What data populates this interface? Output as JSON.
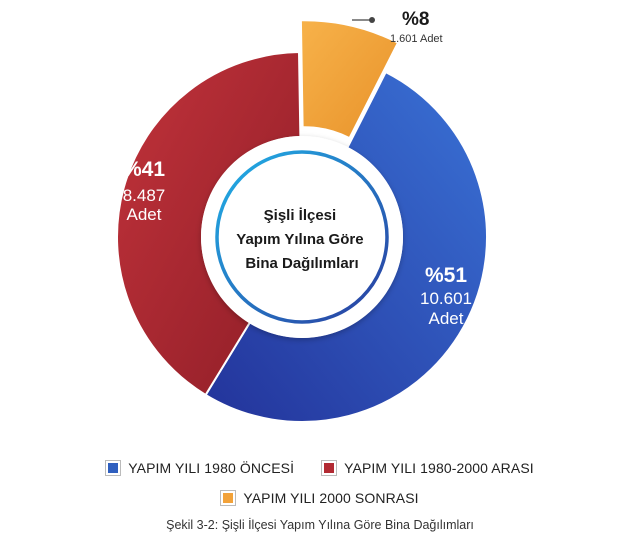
{
  "chart_data": {
    "type": "pie",
    "style": "donut",
    "title": "Şişli İlçesi Yapım Yılına Göre Bina Dağılımları",
    "title_lines": [
      "Şişli İlçesi",
      "Yapım Yılına Göre",
      "Bina Dağılımları"
    ],
    "caption": "Şekil 3-2: Şişli İlçesi Yapım Yılına Göre Bina Dağılımları",
    "legend_position": "bottom",
    "slices": [
      {
        "label": "YAPIM YILI 1980 ÖNCESİ",
        "percent_label": "%51",
        "count_label": "10.601",
        "unit": "Adet",
        "value": 10601,
        "percent": 51,
        "color": "#2f5fbf"
      },
      {
        "label": "YAPIM YILI 1980-2000 ARASI",
        "percent_label": "%41",
        "count_label": "8.487",
        "unit": "Adet",
        "value": 8487,
        "percent": 41,
        "color": "#b22a33"
      },
      {
        "label": "YAPIM YILI 2000 SONRASI",
        "percent_label": "%8",
        "count_label": "1.601 Adet",
        "unit": "",
        "value": 1601,
        "percent": 8,
        "color": "#f2a23a"
      }
    ]
  }
}
